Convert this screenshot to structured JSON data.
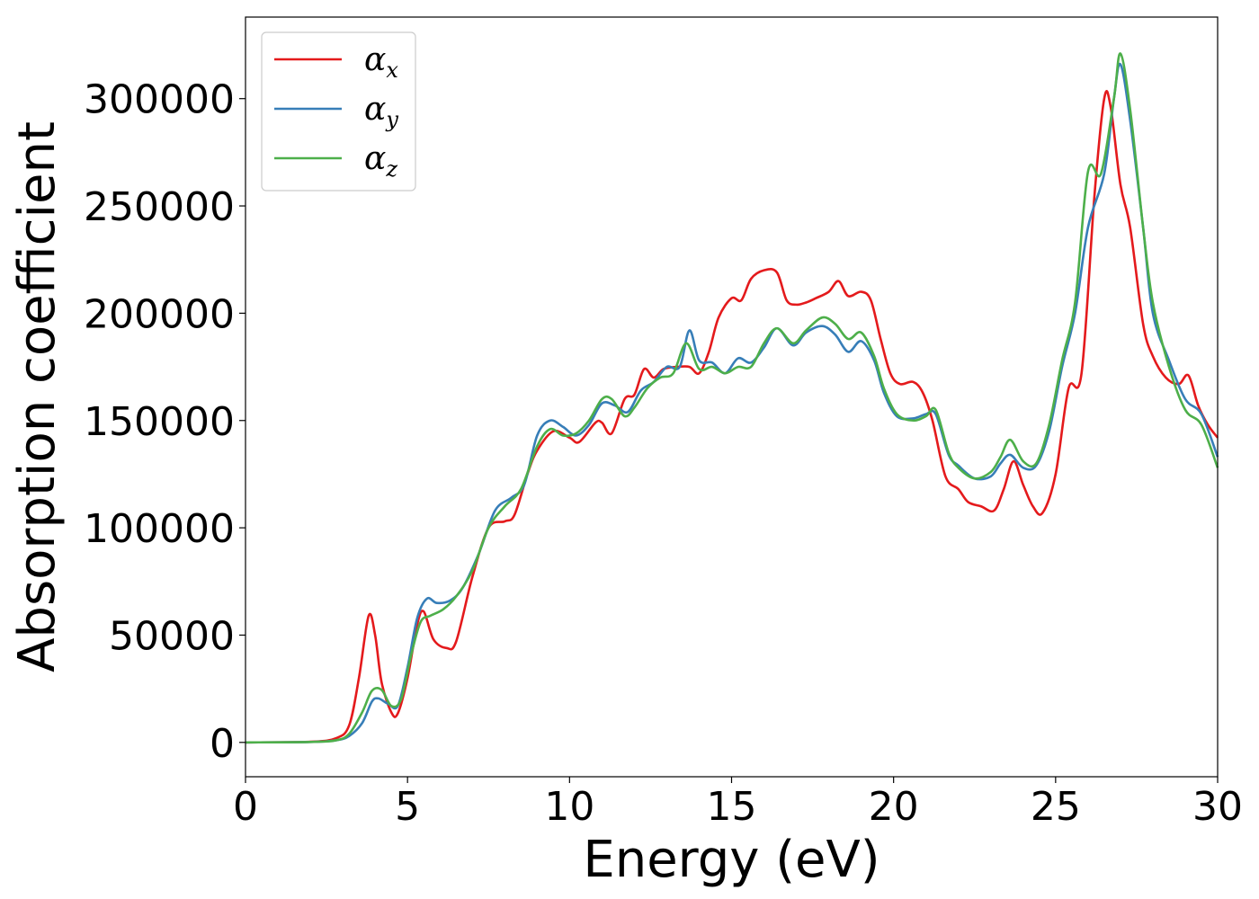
{
  "chart_data": {
    "type": "line",
    "xlabel": "Energy (eV)",
    "ylabel": "Absorption coefficient",
    "xlim": [
      0,
      30
    ],
    "ylim": [
      -16000,
      338000
    ],
    "xticks": [
      0,
      5,
      10,
      15,
      20,
      25,
      30
    ],
    "yticks": [
      0,
      50000,
      100000,
      150000,
      200000,
      250000,
      300000
    ],
    "grid": false,
    "legend_position": "top-left",
    "series": [
      {
        "name": "α_x",
        "label_main": "α",
        "label_sub": "x",
        "color": "#e41a1c",
        "points": [
          [
            0,
            0
          ],
          [
            2,
            300
          ],
          [
            2.8,
            2000
          ],
          [
            3.2,
            8000
          ],
          [
            3.5,
            30000
          ],
          [
            3.8,
            59000
          ],
          [
            4.0,
            50000
          ],
          [
            4.2,
            28000
          ],
          [
            4.5,
            14000
          ],
          [
            4.7,
            13500
          ],
          [
            5.0,
            30000
          ],
          [
            5.3,
            55000
          ],
          [
            5.5,
            61000
          ],
          [
            5.8,
            48000
          ],
          [
            6.2,
            44000
          ],
          [
            6.5,
            47000
          ],
          [
            7.0,
            77000
          ],
          [
            7.5,
            100000
          ],
          [
            8.0,
            103000
          ],
          [
            8.3,
            106000
          ],
          [
            8.7,
            125000
          ],
          [
            9.0,
            136000
          ],
          [
            9.5,
            145000
          ],
          [
            10.0,
            142000
          ],
          [
            10.3,
            140000
          ],
          [
            10.8,
            149000
          ],
          [
            11.0,
            149000
          ],
          [
            11.3,
            144000
          ],
          [
            11.7,
            160000
          ],
          [
            12.0,
            162000
          ],
          [
            12.3,
            174000
          ],
          [
            12.6,
            170000
          ],
          [
            12.9,
            174000
          ],
          [
            13.3,
            175000
          ],
          [
            13.7,
            175000
          ],
          [
            14.0,
            172000
          ],
          [
            14.3,
            182000
          ],
          [
            14.6,
            198000
          ],
          [
            15.0,
            207000
          ],
          [
            15.3,
            206000
          ],
          [
            15.6,
            216000
          ],
          [
            16.0,
            220000
          ],
          [
            16.4,
            219000
          ],
          [
            16.7,
            206000
          ],
          [
            17.0,
            204000
          ],
          [
            17.3,
            205000
          ],
          [
            17.6,
            207000
          ],
          [
            18.0,
            210000
          ],
          [
            18.3,
            215000
          ],
          [
            18.6,
            208000
          ],
          [
            19.0,
            210000
          ],
          [
            19.3,
            206000
          ],
          [
            19.6,
            188000
          ],
          [
            19.9,
            172000
          ],
          [
            20.2,
            167000
          ],
          [
            20.6,
            168000
          ],
          [
            20.9,
            163000
          ],
          [
            21.2,
            150000
          ],
          [
            21.6,
            124000
          ],
          [
            22.0,
            118000
          ],
          [
            22.3,
            112000
          ],
          [
            22.7,
            110000
          ],
          [
            23.1,
            108000
          ],
          [
            23.4,
            118000
          ],
          [
            23.7,
            131000
          ],
          [
            24.0,
            120000
          ],
          [
            24.3,
            110000
          ],
          [
            24.6,
            107000
          ],
          [
            25.0,
            125000
          ],
          [
            25.4,
            165000
          ],
          [
            25.8,
            172000
          ],
          [
            26.2,
            255000
          ],
          [
            26.5,
            300000
          ],
          [
            26.7,
            296000
          ],
          [
            27.0,
            260000
          ],
          [
            27.3,
            240000
          ],
          [
            27.7,
            195000
          ],
          [
            28.0,
            180000
          ],
          [
            28.4,
            170000
          ],
          [
            28.8,
            167000
          ],
          [
            29.1,
            171000
          ],
          [
            29.4,
            157000
          ],
          [
            29.7,
            148000
          ],
          [
            30.0,
            142000
          ]
        ]
      },
      {
        "name": "α_y",
        "label_main": "α",
        "label_sub": "y",
        "color": "#377eb8",
        "points": [
          [
            0,
            0
          ],
          [
            2,
            200
          ],
          [
            2.8,
            1000
          ],
          [
            3.2,
            3000
          ],
          [
            3.6,
            9000
          ],
          [
            3.9,
            19000
          ],
          [
            4.1,
            20500
          ],
          [
            4.4,
            18000
          ],
          [
            4.7,
            17000
          ],
          [
            5.0,
            35000
          ],
          [
            5.3,
            58000
          ],
          [
            5.6,
            67000
          ],
          [
            5.9,
            65000
          ],
          [
            6.3,
            66000
          ],
          [
            6.7,
            72000
          ],
          [
            7.2,
            88000
          ],
          [
            7.7,
            108000
          ],
          [
            8.2,
            114000
          ],
          [
            8.6,
            120000
          ],
          [
            9.0,
            143000
          ],
          [
            9.4,
            150000
          ],
          [
            9.8,
            147000
          ],
          [
            10.2,
            143000
          ],
          [
            10.6,
            148000
          ],
          [
            11.0,
            158000
          ],
          [
            11.4,
            157000
          ],
          [
            11.8,
            154000
          ],
          [
            12.2,
            164000
          ],
          [
            12.6,
            168000
          ],
          [
            13.0,
            175000
          ],
          [
            13.4,
            175000
          ],
          [
            13.7,
            192000
          ],
          [
            14.0,
            178000
          ],
          [
            14.4,
            177000
          ],
          [
            14.8,
            172000
          ],
          [
            15.2,
            179000
          ],
          [
            15.6,
            177000
          ],
          [
            16.0,
            184000
          ],
          [
            16.4,
            193000
          ],
          [
            16.9,
            185000
          ],
          [
            17.3,
            191000
          ],
          [
            17.8,
            194000
          ],
          [
            18.2,
            190000
          ],
          [
            18.6,
            182000
          ],
          [
            19.0,
            187000
          ],
          [
            19.4,
            178000
          ],
          [
            19.7,
            163000
          ],
          [
            20.1,
            152000
          ],
          [
            20.6,
            151000
          ],
          [
            21.0,
            153000
          ],
          [
            21.3,
            153000
          ],
          [
            21.7,
            134000
          ],
          [
            22.0,
            129000
          ],
          [
            22.5,
            123000
          ],
          [
            23.0,
            124000
          ],
          [
            23.3,
            130000
          ],
          [
            23.6,
            134000
          ],
          [
            24.0,
            128000
          ],
          [
            24.4,
            129000
          ],
          [
            24.8,
            145000
          ],
          [
            25.2,
            175000
          ],
          [
            25.6,
            200000
          ],
          [
            26.0,
            240000
          ],
          [
            26.5,
            265000
          ],
          [
            26.8,
            300000
          ],
          [
            27.0,
            316000
          ],
          [
            27.3,
            290000
          ],
          [
            27.7,
            240000
          ],
          [
            28.0,
            200000
          ],
          [
            28.5,
            178000
          ],
          [
            29.0,
            160000
          ],
          [
            29.5,
            153000
          ],
          [
            30.0,
            133000
          ]
        ]
      },
      {
        "name": "α_z",
        "label_main": "α",
        "label_sub": "z",
        "color": "#4daf4a",
        "points": [
          [
            0,
            0
          ],
          [
            2,
            200
          ],
          [
            2.8,
            1000
          ],
          [
            3.2,
            4000
          ],
          [
            3.6,
            14000
          ],
          [
            3.9,
            24000
          ],
          [
            4.2,
            24500
          ],
          [
            4.5,
            17000
          ],
          [
            4.8,
            20000
          ],
          [
            5.1,
            40000
          ],
          [
            5.4,
            56000
          ],
          [
            5.7,
            59000
          ],
          [
            6.1,
            62000
          ],
          [
            6.5,
            68000
          ],
          [
            7.0,
            80000
          ],
          [
            7.5,
            100000
          ],
          [
            8.0,
            110000
          ],
          [
            8.5,
            118000
          ],
          [
            9.0,
            138000
          ],
          [
            9.4,
            146000
          ],
          [
            9.8,
            143000
          ],
          [
            10.2,
            144000
          ],
          [
            10.6,
            150000
          ],
          [
            11.0,
            160000
          ],
          [
            11.3,
            160000
          ],
          [
            11.7,
            152000
          ],
          [
            12.0,
            156000
          ],
          [
            12.4,
            165000
          ],
          [
            12.8,
            170000
          ],
          [
            13.2,
            172000
          ],
          [
            13.6,
            186000
          ],
          [
            14.0,
            174000
          ],
          [
            14.4,
            175000
          ],
          [
            14.8,
            172000
          ],
          [
            15.2,
            175000
          ],
          [
            15.6,
            175000
          ],
          [
            16.0,
            186000
          ],
          [
            16.4,
            193000
          ],
          [
            16.9,
            186000
          ],
          [
            17.3,
            192000
          ],
          [
            17.8,
            198000
          ],
          [
            18.2,
            195000
          ],
          [
            18.6,
            188000
          ],
          [
            19.0,
            191000
          ],
          [
            19.4,
            180000
          ],
          [
            19.7,
            165000
          ],
          [
            20.1,
            153000
          ],
          [
            20.6,
            150000
          ],
          [
            21.0,
            152000
          ],
          [
            21.3,
            155000
          ],
          [
            21.7,
            135000
          ],
          [
            22.0,
            128000
          ],
          [
            22.5,
            123000
          ],
          [
            23.0,
            126000
          ],
          [
            23.3,
            133000
          ],
          [
            23.6,
            141000
          ],
          [
            24.0,
            131000
          ],
          [
            24.4,
            130000
          ],
          [
            24.8,
            148000
          ],
          [
            25.2,
            178000
          ],
          [
            25.6,
            205000
          ],
          [
            26.0,
            266000
          ],
          [
            26.4,
            265000
          ],
          [
            26.8,
            300000
          ],
          [
            27.0,
            321000
          ],
          [
            27.3,
            295000
          ],
          [
            27.7,
            240000
          ],
          [
            28.0,
            205000
          ],
          [
            28.5,
            175000
          ],
          [
            29.0,
            155000
          ],
          [
            29.5,
            148000
          ],
          [
            30.0,
            128000
          ]
        ]
      }
    ]
  }
}
